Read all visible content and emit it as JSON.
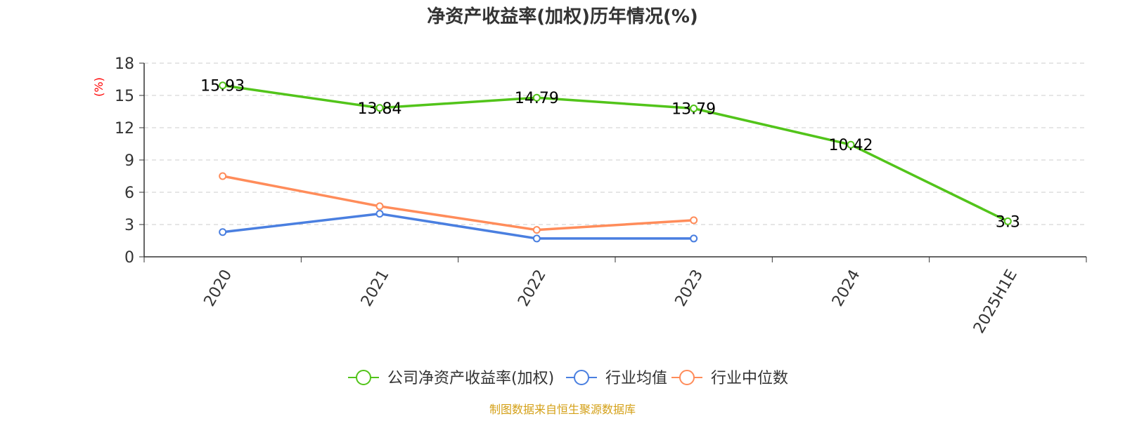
{
  "colors": {
    "company": "#52c41a",
    "industry_avg": "#4a7fe0",
    "industry_median": "#ff8c5a",
    "grid": "#cccccc",
    "axis": "#333333",
    "ylabel": "#ff0000",
    "source": "#d4a017"
  },
  "chart_data": {
    "type": "line",
    "title": "净资产收益率(加权)历年情况(%)",
    "ylabel": "(%)",
    "xlabel": "",
    "categories": [
      "2020",
      "2021",
      "2022",
      "2023",
      "2024",
      "2025H1E"
    ],
    "ylim": [
      0,
      18
    ],
    "yticks": [
      0,
      3,
      6,
      9,
      12,
      15,
      18
    ],
    "grid": "horizontal dashed",
    "legend_position": "bottom",
    "series": [
      {
        "name": "公司净资产收益率(加权)",
        "values": [
          15.93,
          13.84,
          14.79,
          13.79,
          10.42,
          3.3
        ],
        "labels": [
          "15.93",
          "13.84",
          "14.79",
          "13.79",
          "10.42",
          "3.3"
        ]
      },
      {
        "name": "行业均值",
        "values": [
          2.3,
          4.0,
          1.7,
          1.7,
          null,
          null
        ]
      },
      {
        "name": "行业中位数",
        "values": [
          7.5,
          4.7,
          2.5,
          3.4,
          null,
          null
        ]
      }
    ]
  },
  "footer": {
    "source": "制图数据来自恒生聚源数据库"
  }
}
